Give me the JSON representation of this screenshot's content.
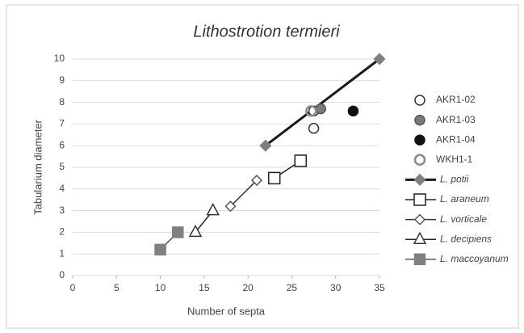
{
  "chart_data": {
    "type": "scatter",
    "title": "Lithostrotion termieri",
    "x_label": "Number of septa",
    "y_label": "Tabularium diameter",
    "xlim": [
      0,
      35
    ],
    "xticks": [
      0,
      5,
      10,
      15,
      20,
      25,
      30,
      35
    ],
    "ylim": [
      0,
      10
    ],
    "yticks": [
      0,
      1,
      2,
      3,
      4,
      5,
      6,
      7,
      8,
      9,
      10
    ],
    "grid": true,
    "legend": "right",
    "series": [
      {
        "name": "AKR1-02",
        "marker": "circle",
        "color": "#333333",
        "fill": "#ffffff",
        "line": false,
        "x": [
          27.5,
          27.5
        ],
        "values": [
          7.6,
          6.8
        ]
      },
      {
        "name": "AKR1-03",
        "marker": "circle",
        "color": "#555555",
        "fill": "#7a7a7a",
        "line": false,
        "x": [
          28.3
        ],
        "values": [
          7.7
        ]
      },
      {
        "name": "AKR1-04",
        "marker": "circle",
        "color": "#111111",
        "fill": "#111111",
        "line": false,
        "x": [
          32
        ],
        "values": [
          7.6
        ]
      },
      {
        "name": "WKH1-1",
        "marker": "circle",
        "color": "#8a8a8a",
        "fill": "none",
        "line": false,
        "x": [
          27.2
        ],
        "values": [
          7.6
        ]
      },
      {
        "name": "L. potii",
        "marker": "diamond",
        "color": "#808080",
        "fill": "#808080",
        "line": true,
        "line_color": "#1a1a1a",
        "line_style": "bold",
        "x": [
          22,
          35
        ],
        "values": [
          6,
          10
        ]
      },
      {
        "name": "L. araneum",
        "marker": "square",
        "color": "#222222",
        "fill": "#ffffff",
        "line": true,
        "line_color": "#222222",
        "line_style": "thin",
        "x": [
          23,
          26
        ],
        "values": [
          4.5,
          5.3
        ]
      },
      {
        "name": "L. vorticale",
        "marker": "diamond",
        "color": "#555555",
        "fill": "#ffffff",
        "line": true,
        "line_color": "#333333",
        "line_style": "thin",
        "x": [
          18,
          21
        ],
        "values": [
          3.2,
          4.4
        ]
      },
      {
        "name": "L. decipiens",
        "marker": "triangle",
        "color": "#333333",
        "fill": "#ffffff",
        "line": true,
        "line_color": "#222222",
        "line_style": "thin",
        "x": [
          14,
          16
        ],
        "values": [
          2,
          3
        ]
      },
      {
        "name": "L. maccoyanum",
        "marker": "square",
        "color": "#808080",
        "fill": "#808080",
        "line": true,
        "line_color": "#555555",
        "line_style": "thin",
        "x": [
          10,
          12
        ],
        "values": [
          1.2,
          2
        ]
      }
    ]
  }
}
